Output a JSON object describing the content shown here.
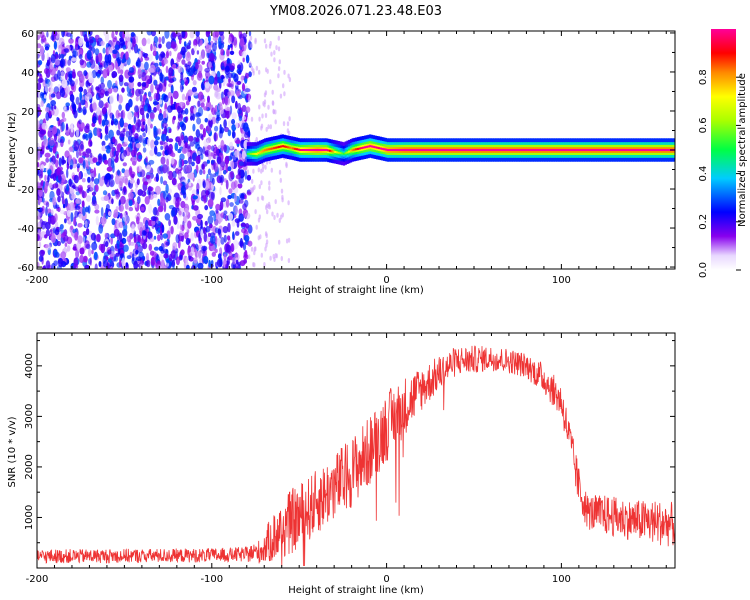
{
  "title": "YM08.2026.071.23.48.E03",
  "chart_data": [
    {
      "type": "heatmap",
      "title": "YM08.2026.071.23.48.E03",
      "xlabel": "Height of straight line (km)",
      "ylabel": "Frequency (Hz)",
      "xlim": [
        -200,
        165
      ],
      "ylim": [
        -61,
        61
      ],
      "xticks": [
        -200,
        -100,
        0,
        100
      ],
      "yticks": [
        -60,
        -40,
        -20,
        0,
        20,
        40,
        60
      ],
      "noise_region": {
        "x_from": -200,
        "x_to": -80,
        "amplitude": [
          0.05,
          0.3
        ]
      },
      "ridge": {
        "x": [
          -80,
          -75,
          -70,
          -65,
          -60,
          -55,
          -50,
          -45,
          -40,
          -35,
          -30,
          -25,
          -20,
          -15,
          -10,
          -5,
          0,
          10,
          20,
          40,
          60,
          80,
          100,
          120,
          140,
          165
        ],
        "frequency": [
          -2,
          -2,
          0,
          1,
          2,
          1,
          0,
          0,
          0,
          0,
          -1,
          -2,
          0,
          1,
          2,
          1,
          0,
          0,
          0,
          0,
          0,
          0,
          0,
          0,
          0,
          0
        ],
        "amplitude": [
          0.4,
          0.6,
          0.7,
          0.75,
          0.8,
          0.7,
          0.85,
          0.9,
          0.95,
          0.9,
          0.6,
          0.4,
          0.7,
          0.85,
          0.9,
          0.85,
          0.95,
          1.0,
          1.0,
          1.0,
          1.0,
          1.0,
          1.0,
          1.0,
          1.0,
          1.0
        ]
      },
      "colorbar": {
        "label": "Normalized spectral amplitude",
        "range": [
          0,
          1
        ],
        "ticks": [
          "0.0",
          "0.2",
          "0.4",
          "0.6",
          "0.8"
        ],
        "tick_values": [
          0,
          0.2,
          0.4,
          0.6,
          0.8
        ]
      }
    },
    {
      "type": "line",
      "xlabel": "Height of straight line (km)",
      "ylabel": "SNR (10 * v/v)",
      "xlim": [
        -200,
        165
      ],
      "ylim": [
        0,
        4650
      ],
      "xticks": [
        -200,
        -100,
        0,
        100
      ],
      "yticks": [
        1000,
        2000,
        3000,
        4000
      ],
      "color": "#ee3333",
      "envelope": {
        "x": [
          -200,
          -150,
          -100,
          -80,
          -72,
          -65,
          -55,
          -45,
          -35,
          -20,
          -10,
          0,
          10,
          20,
          30,
          40,
          60,
          70,
          80,
          90,
          100,
          105,
          110,
          115,
          125,
          140,
          155,
          165
        ],
        "mean": [
          230,
          240,
          250,
          270,
          330,
          600,
          900,
          1150,
          1450,
          1900,
          2300,
          2800,
          3200,
          3550,
          3850,
          4100,
          4150,
          4100,
          4000,
          3750,
          3300,
          2500,
          1600,
          1100,
          1050,
          950,
          900,
          850
        ],
        "spread": [
          140,
          140,
          140,
          150,
          250,
          500,
          650,
          650,
          650,
          700,
          700,
          700,
          600,
          450,
          350,
          300,
          250,
          250,
          250,
          300,
          350,
          400,
          400,
          350,
          400,
          400,
          450,
          450
        ]
      }
    }
  ]
}
